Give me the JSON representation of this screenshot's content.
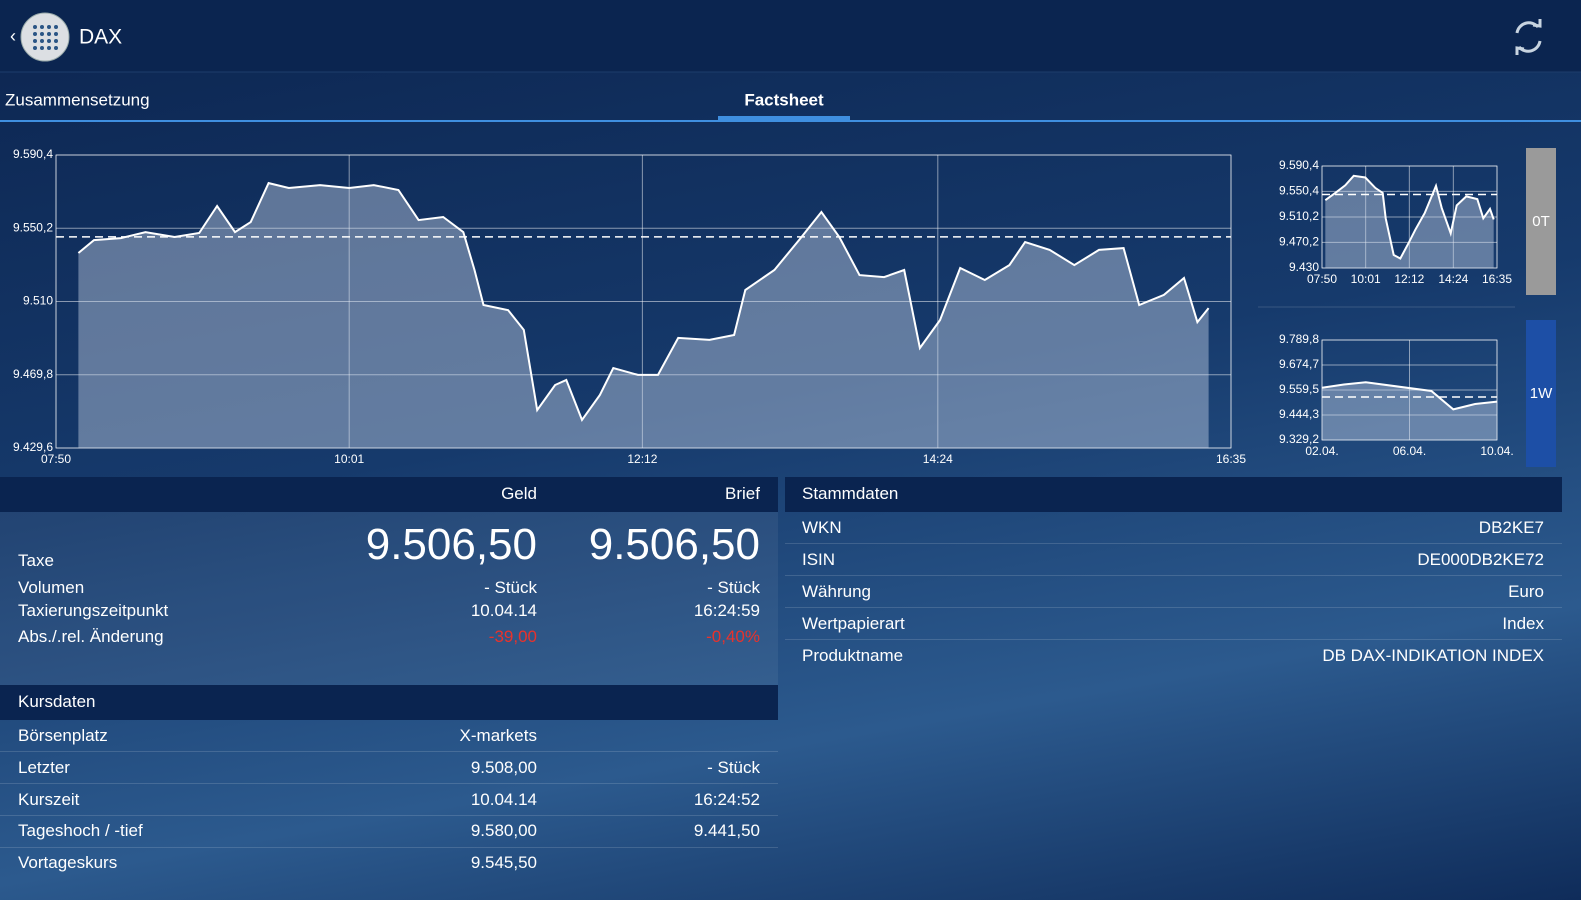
{
  "header": {
    "title": "DAX"
  },
  "tabs": [
    "Zusammensetzung",
    "Factsheet"
  ],
  "range_buttons": [
    "0T",
    "1W"
  ],
  "chart_data": [
    {
      "type": "line",
      "color": "#ffffff",
      "reference": 9545.5,
      "x": [
        "08:00",
        "08:07",
        "08:19",
        "08:30",
        "08:43",
        "08:54",
        "09:02",
        "09:10",
        "09:17",
        "09:25",
        "09:34",
        "09:48",
        "10:01",
        "10:12",
        "10:23",
        "10:32",
        "10:43",
        "10:52",
        "10:57",
        "11:01",
        "11:12",
        "11:19",
        "11:25",
        "11:33",
        "11:38",
        "11:45",
        "11:53",
        "11:59",
        "12:10",
        "12:19",
        "12:28",
        "12:42",
        "12:53",
        "12:58",
        "13:11",
        "13:22",
        "13:32",
        "13:40",
        "13:49",
        "14:00",
        "14:09",
        "14:16",
        "14:25",
        "14:34",
        "14:45",
        "14:56",
        "15:03",
        "15:14",
        "15:25",
        "15:36",
        "15:47",
        "15:54",
        "16:05",
        "16:14",
        "16:20",
        "16:25"
      ],
      "values": [
        9536.6,
        9543.7,
        9544.8,
        9548.1,
        9545.4,
        9547.6,
        9562.4,
        9548.1,
        9553.6,
        9575.0,
        9572.3,
        9573.9,
        9572.3,
        9573.9,
        9571.2,
        9554.7,
        9556.4,
        9548.1,
        9527.3,
        9508.1,
        9505.3,
        9494.4,
        9450.4,
        9464.2,
        9466.9,
        9445.0,
        9458.7,
        9473.5,
        9469.7,
        9469.7,
        9490.0,
        9488.9,
        9491.6,
        9516.3,
        9527.3,
        9543.7,
        9559.1,
        9545.4,
        9524.5,
        9523.4,
        9527.3,
        9484.5,
        9499.8,
        9528.4,
        9521.8,
        9530.0,
        9542.6,
        9538.3,
        9530.0,
        9538.3,
        9539.3,
        9508.1,
        9513.6,
        9522.9,
        9498.7,
        9506.4
      ],
      "xlim": [
        "07:50",
        "16:35"
      ],
      "xticks": [
        "07:50",
        "10:01",
        "12:12",
        "14:24",
        "16:35"
      ],
      "ylim": [
        9429.6,
        9590.4
      ],
      "yticks": [
        {
          "value": 9429.6,
          "label": "9.429,6"
        },
        {
          "value": 9469.8,
          "label": "9.469,8"
        },
        {
          "value": 9510,
          "label": "9.510"
        },
        {
          "value": 9550.2,
          "label": "9.550,2"
        },
        {
          "value": 9590.4,
          "label": "9.590,4"
        }
      ]
    },
    {
      "type": "line",
      "color": "#ffffff",
      "reference": 9545.5,
      "x": [
        "08:00",
        "08:30",
        "09:00",
        "09:25",
        "10:00",
        "10:30",
        "10:52",
        "11:01",
        "11:25",
        "11:45",
        "12:10",
        "12:30",
        "12:58",
        "13:32",
        "13:49",
        "14:16",
        "14:34",
        "15:03",
        "15:36",
        "15:54",
        "16:14",
        "16:25"
      ],
      "values": [
        9536.6,
        9548.1,
        9560.0,
        9575.0,
        9572.3,
        9556.0,
        9548.1,
        9508.1,
        9450.4,
        9445.0,
        9469.7,
        9490.0,
        9516.3,
        9559.1,
        9524.5,
        9484.5,
        9528.4,
        9542.6,
        9538.3,
        9508.1,
        9522.9,
        9506.4
      ],
      "xlim": [
        "07:50",
        "16:35"
      ],
      "xticks": [
        "07:50",
        "10:01",
        "12:12",
        "14:24",
        "16:35"
      ],
      "ylim": [
        9430,
        9590.4
      ],
      "yticks": [
        {
          "value": 9430,
          "label": "9.430"
        },
        {
          "value": 9470.2,
          "label": "9.470,2"
        },
        {
          "value": 9510.2,
          "label": "9.510,2"
        },
        {
          "value": 9550.4,
          "label": "9.550,4"
        },
        {
          "value": 9590.4,
          "label": "9.590,4"
        }
      ]
    },
    {
      "type": "line",
      "color": "#ffffff",
      "reference": 9527,
      "x": [
        "02.04.",
        "03.04.",
        "04.04.",
        "07.04.",
        "08.04.",
        "09.04.",
        "10.04."
      ],
      "values": [
        9570,
        9585,
        9595,
        9555,
        9470,
        9495,
        9506
      ],
      "xlim": [
        "02.04.",
        "10.04."
      ],
      "xticks": [
        "02.04.",
        "06.04.",
        "10.04."
      ],
      "ylim": [
        9329.2,
        9789.8
      ],
      "yticks": [
        {
          "value": 9329.2,
          "label": "9.329,2"
        },
        {
          "value": 9444.3,
          "label": "9.444,3"
        },
        {
          "value": 9559.5,
          "label": "9.559,5"
        },
        {
          "value": 9674.7,
          "label": "9.674,7"
        },
        {
          "value": 9789.8,
          "label": "9.789,8"
        }
      ]
    }
  ],
  "quote": {
    "columns": [
      "Geld",
      "Brief"
    ],
    "rows": [
      [
        "Taxe",
        "9.506,50",
        "9.506,50"
      ],
      [
        "Volumen",
        "- Stück",
        "- Stück"
      ],
      [
        "Taxierungszeitpunkt",
        "10.04.14",
        "16:24:59"
      ],
      [
        "Abs./.rel. Änderung",
        "-39,00",
        "-0,40%"
      ]
    ]
  },
  "kursdaten": {
    "title": "Kursdaten",
    "rows": [
      [
        "Börsenplatz",
        "X-markets"
      ],
      [
        "Letzter",
        "9.508,00",
        "- Stück"
      ],
      [
        "Kurszeit",
        "10.04.14",
        "16:24:52"
      ],
      [
        "Tageshoch / -tief",
        "9.580,00",
        "9.441,50"
      ],
      [
        "Vortageskurs",
        "9.545,50"
      ]
    ]
  },
  "stammdaten": {
    "title": "Stammdaten",
    "rows": [
      [
        "WKN",
        "DB2KE7"
      ],
      [
        "ISIN",
        "DE000DB2KE72"
      ],
      [
        "Währung",
        "Euro"
      ],
      [
        "Wertpapierart",
        "Index"
      ],
      [
        "Produktname",
        "DB DAX-INDIKATION INDEX"
      ]
    ]
  }
}
